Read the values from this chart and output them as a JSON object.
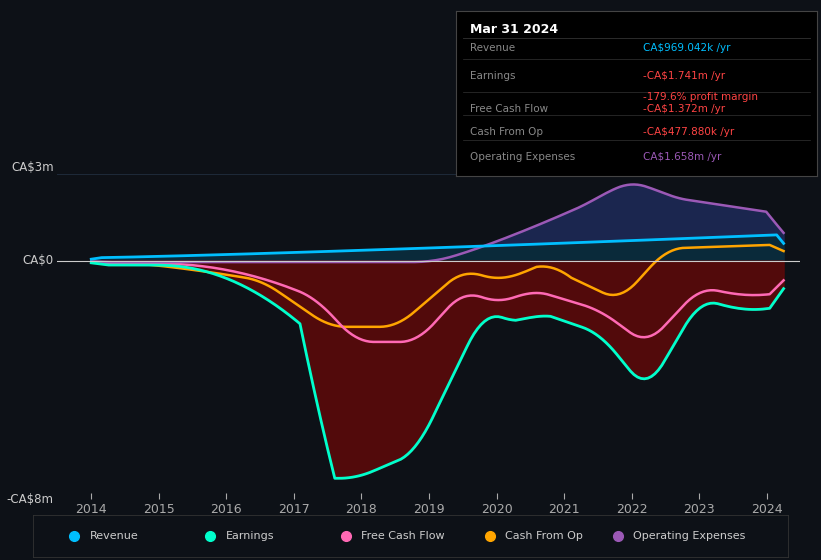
{
  "bg_color": "#0d1117",
  "plot_bg_color": "#0d1117",
  "ylabel_top": "CA$3m",
  "ylabel_zero": "CA$0",
  "ylabel_bottom": "-CA$8m",
  "ylim": [
    -8000000,
    3000000
  ],
  "xlim": [
    2013.5,
    2024.5
  ],
  "xticks": [
    2014,
    2015,
    2016,
    2017,
    2018,
    2019,
    2020,
    2021,
    2022,
    2023,
    2024
  ],
  "colors": {
    "revenue": "#00bfff",
    "earnings": "#00ffcc",
    "free_cash_flow": "#ff69b4",
    "cash_from_op": "#ffa500",
    "operating_expenses": "#9b59b6"
  },
  "info_box": {
    "title": "Mar 31 2024",
    "rows": [
      {
        "label": "Revenue",
        "value": "CA$969.042k /yr",
        "value_color": "#00bfff",
        "extra": null,
        "extra_color": null
      },
      {
        "label": "Earnings",
        "value": "-CA$1.741m /yr",
        "value_color": "#ff4444",
        "extra": "-179.6% profit margin",
        "extra_color": "#ff4444"
      },
      {
        "label": "Free Cash Flow",
        "value": "-CA$1.372m /yr",
        "value_color": "#ff4444",
        "extra": null,
        "extra_color": null
      },
      {
        "label": "Cash From Op",
        "value": "-CA$477.880k /yr",
        "value_color": "#ff4444",
        "extra": null,
        "extra_color": null
      },
      {
        "label": "Operating Expenses",
        "value": "CA$1.658m /yr",
        "value_color": "#9b59b6",
        "extra": null,
        "extra_color": null
      }
    ]
  },
  "legend": [
    {
      "label": "Revenue",
      "color": "#00bfff"
    },
    {
      "label": "Earnings",
      "color": "#00ffcc"
    },
    {
      "label": "Free Cash Flow",
      "color": "#ff69b4"
    },
    {
      "label": "Cash From Op",
      "color": "#ffa500"
    },
    {
      "label": "Operating Expenses",
      "color": "#9b59b6"
    }
  ]
}
